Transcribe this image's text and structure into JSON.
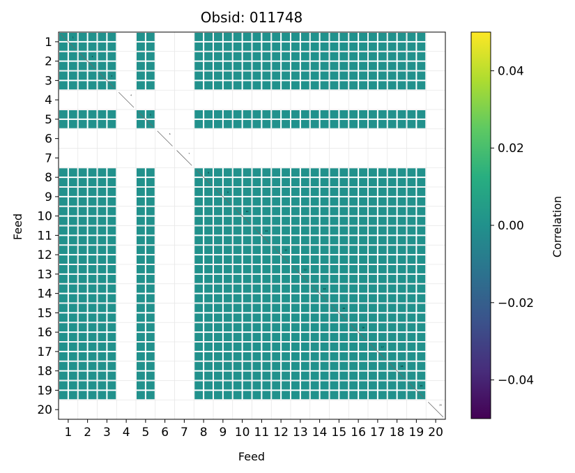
{
  "chart_data": {
    "type": "heatmap",
    "title": "Obsid: 011748",
    "xlabel": "Feed",
    "ylabel": "Feed",
    "x_tick_labels": [
      "1",
      "2",
      "3",
      "4",
      "5",
      "6",
      "7",
      "8",
      "9",
      "10",
      "11",
      "12",
      "13",
      "14",
      "15",
      "16",
      "17",
      "18",
      "19",
      "20"
    ],
    "y_tick_labels": [
      "1",
      "2",
      "3",
      "4",
      "5",
      "6",
      "7",
      "8",
      "9",
      "10",
      "11",
      "12",
      "13",
      "14",
      "15",
      "16",
      "17",
      "18",
      "19",
      "20"
    ],
    "feeds": [
      1,
      2,
      3,
      4,
      5,
      6,
      7,
      8,
      9,
      10,
      11,
      12,
      13,
      14,
      15,
      16,
      17,
      18,
      19,
      20
    ],
    "active_feeds": [
      1,
      2,
      3,
      5,
      8,
      9,
      10,
      11,
      12,
      13,
      14,
      15,
      16,
      17,
      18,
      19
    ],
    "value_in_active_blocks": 0.0,
    "diagonal_labels": [
      "1",
      "2",
      "3",
      "4",
      "5",
      "6",
      "7",
      "8",
      "9",
      "10",
      "11",
      "12",
      "13",
      "14",
      "15",
      "16",
      "17",
      "18",
      "19",
      "20"
    ],
    "colorbar": {
      "label": "Correlation",
      "colormap": "viridis",
      "vmin": -0.05,
      "vmax": 0.05,
      "ticks": [
        0.04,
        0.02,
        0.0,
        -0.02,
        -0.04
      ],
      "tick_labels": [
        "0.04",
        "0.02",
        "0.00",
        "−0.02",
        "−0.04"
      ]
    },
    "block_color": "#21918c",
    "grid": true
  }
}
